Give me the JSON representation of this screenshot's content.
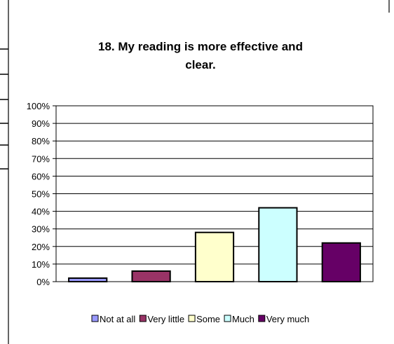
{
  "chart_data": {
    "type": "bar",
    "title_line1": "18. My reading is more effective and",
    "title_line2": "clear.",
    "categories": [
      "Not at all",
      "Very little",
      "Some",
      "Much",
      "Very much"
    ],
    "values": [
      2,
      6,
      28,
      42,
      22
    ],
    "colors": [
      "#9999FF",
      "#993366",
      "#FFFFCC",
      "#CCFFFF",
      "#660066"
    ],
    "ylim": [
      0,
      100
    ],
    "yticks": [
      0,
      10,
      20,
      30,
      40,
      50,
      60,
      70,
      80,
      90,
      100
    ],
    "ytick_labels": [
      "0%",
      "10%",
      "20%",
      "30%",
      "40%",
      "50%",
      "60%",
      "70%",
      "80%",
      "90%",
      "100%"
    ],
    "grid": true,
    "legend_position": "bottom",
    "legend": [
      "Not at all",
      "Very little",
      "Some",
      "Much",
      "Very much"
    ]
  }
}
